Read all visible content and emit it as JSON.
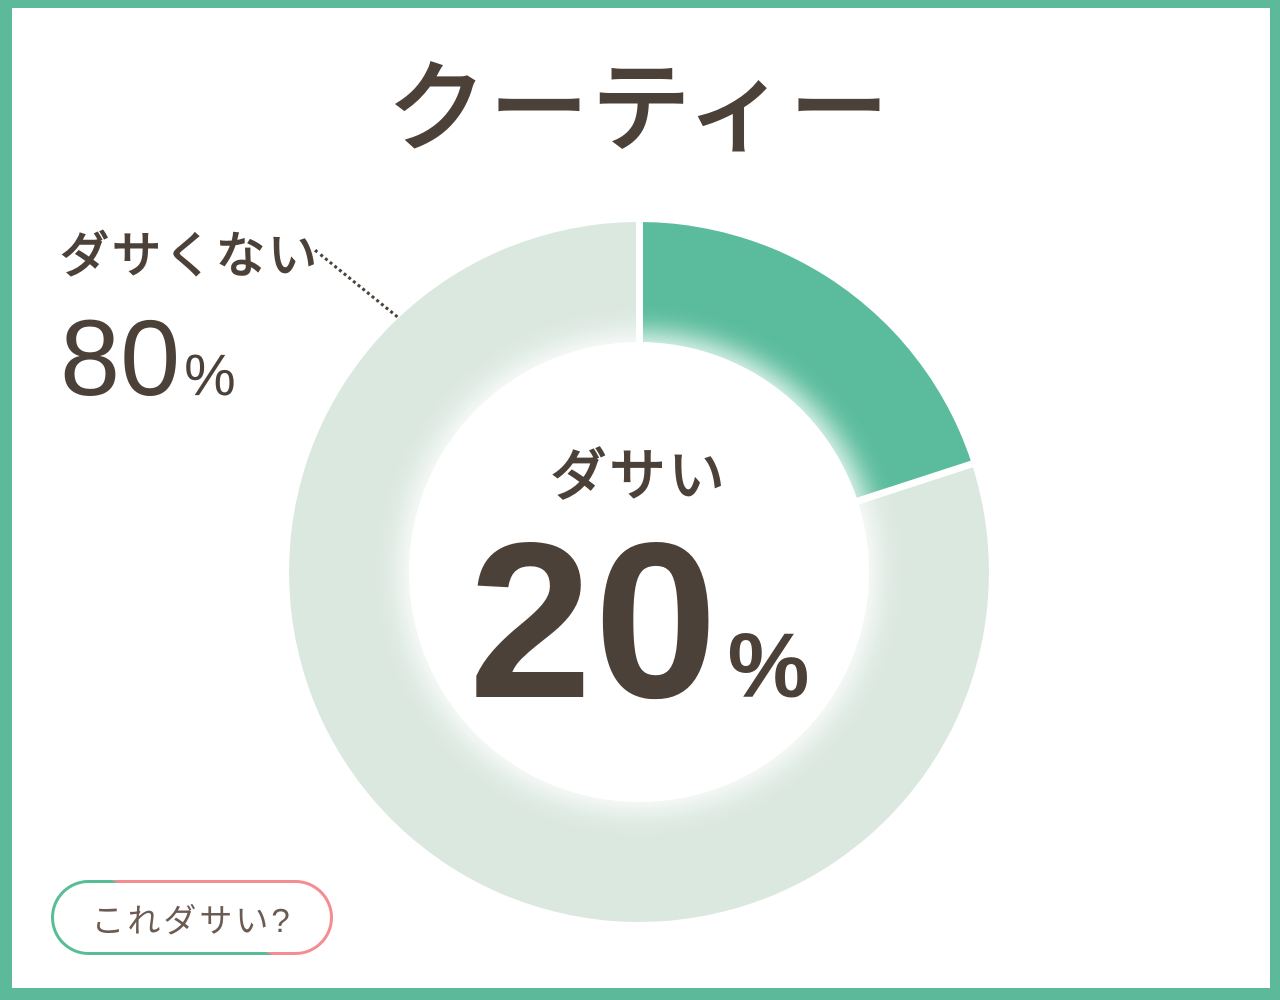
{
  "title": "クーティー",
  "chart_data": {
    "type": "pie",
    "donut": true,
    "title": "クーティー",
    "categories": [
      "ダサい",
      "ダサくない"
    ],
    "values": [
      20,
      80
    ],
    "unit": "%",
    "start_angle_deg": 0,
    "direction": "clockwise",
    "slice_colors": [
      "#5abc9c",
      "#dbe8e0"
    ],
    "legend_position": "none",
    "label_layout": {
      "ダサい": "center-of-donut",
      "ダサくない": "outside-callout-top-left-with-dotted-leader"
    }
  },
  "center_label": {
    "name": "ダサい",
    "value": "20",
    "unit": "%"
  },
  "callout": {
    "name": "ダサくない",
    "value": "80",
    "unit": "%"
  },
  "badge": {
    "label": "これダサい?"
  },
  "colors": {
    "frame": "#5cba9a",
    "slice_main": "#5abc9c",
    "slice_rest": "#dbe8e0",
    "text_dark": "#4c4138",
    "pill_green": "#57bd95",
    "pill_pink": "#f58d90",
    "pill_text": "#6b5b52"
  }
}
